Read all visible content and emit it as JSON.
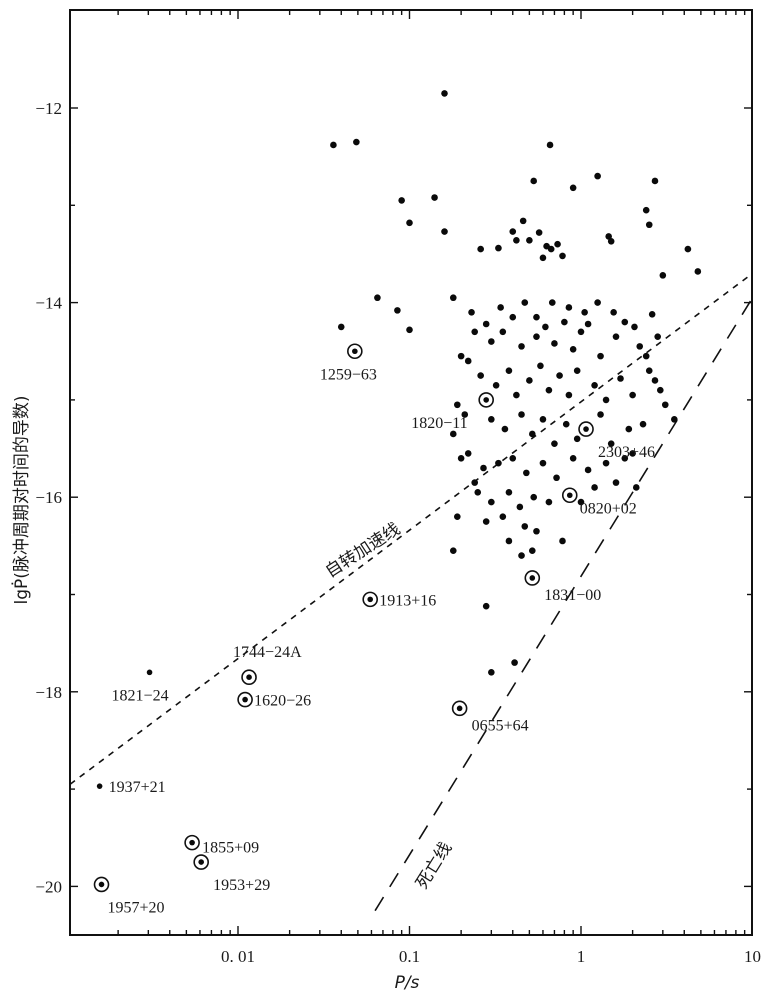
{
  "chart_data": {
    "type": "scatter",
    "title": "",
    "xlabel": "P/s",
    "ylabel": "lgṖ(脉冲周期对时间的导数)",
    "x_scale": "log",
    "xlim": [
      0.00105,
      10
    ],
    "ylim": [
      -20.5,
      -11
    ],
    "x_ticks": [
      {
        "value": 0.01,
        "label": "0. 01"
      },
      {
        "value": 0.1,
        "label": "0.1"
      },
      {
        "value": 1,
        "label": "1"
      },
      {
        "value": 10,
        "label": "10"
      }
    ],
    "y_ticks": [
      {
        "value": -12,
        "label": "−12"
      },
      {
        "value": -14,
        "label": "−14"
      },
      {
        "value": -16,
        "label": "−16"
      },
      {
        "value": -18,
        "label": "−18"
      },
      {
        "value": -20,
        "label": "−20"
      }
    ],
    "grid": false,
    "lines": [
      {
        "name": "自转加速线",
        "style": "short-dash",
        "points": [
          [
            0.00105,
            -18.95
          ],
          [
            10,
            -13.7
          ]
        ]
      },
      {
        "name": "死亡线",
        "style": "long-dash",
        "points": [
          [
            0.063,
            -20.25
          ],
          [
            10,
            -13.95
          ]
        ]
      }
    ],
    "labeled_pulsars": [
      {
        "name": "1259−63",
        "x": 0.048,
        "y": -14.5,
        "marker": "circled-dot",
        "label_text": "1259−63"
      },
      {
        "name": "1820−11",
        "x": 0.28,
        "y": -15.0,
        "marker": "circled-dot",
        "label_text": "1820−11"
      },
      {
        "name": "2303+46",
        "x": 1.07,
        "y": -15.3,
        "marker": "circled-dot",
        "label_text": "2303+46"
      },
      {
        "name": "0820+02",
        "x": 0.86,
        "y": -15.98,
        "marker": "circled-dot",
        "label_text": "0820+02"
      },
      {
        "name": "1831−00",
        "x": 0.52,
        "y": -16.83,
        "marker": "circled-dot",
        "label_text": "1831−00"
      },
      {
        "name": "1913+16",
        "x": 0.059,
        "y": -17.05,
        "marker": "circled-dot",
        "label_text": "1913+16"
      },
      {
        "name": "1744−24A",
        "x": 0.0116,
        "y": -17.85,
        "marker": "circled-dot",
        "label_text": "1744−24A"
      },
      {
        "name": "1620−26",
        "x": 0.011,
        "y": -18.08,
        "marker": "circled-dot",
        "label_text": "1620−26"
      },
      {
        "name": "1821−24",
        "x": 0.00305,
        "y": -17.8,
        "marker": "dot",
        "label_text": "1821−24"
      },
      {
        "name": "0655+64",
        "x": 0.196,
        "y": -18.17,
        "marker": "circled-dot",
        "label_text": "0655+64"
      },
      {
        "name": "1937+21",
        "x": 0.00156,
        "y": -18.97,
        "marker": "dot",
        "label_text": "1937+21"
      },
      {
        "name": "1855+09",
        "x": 0.0054,
        "y": -19.55,
        "marker": "circled-dot",
        "label_text": "1855+09"
      },
      {
        "name": "1953+29",
        "x": 0.0061,
        "y": -19.75,
        "marker": "circled-dot",
        "label_text": "1953+29"
      },
      {
        "name": "1957+20",
        "x": 0.0016,
        "y": -19.98,
        "marker": "circled-dot",
        "label_text": "1957+20"
      }
    ],
    "series": [
      {
        "name": "pulsars",
        "marker": "dot",
        "points": [
          [
            0.036,
            -12.38
          ],
          [
            0.049,
            -12.35
          ],
          [
            0.16,
            -11.85
          ],
          [
            0.66,
            -12.38
          ],
          [
            0.53,
            -12.75
          ],
          [
            1.25,
            -12.7
          ],
          [
            2.7,
            -12.75
          ],
          [
            0.9,
            -12.82
          ],
          [
            0.09,
            -12.95
          ],
          [
            0.14,
            -12.92
          ],
          [
            0.1,
            -13.18
          ],
          [
            0.16,
            -13.27
          ],
          [
            0.46,
            -13.16
          ],
          [
            0.57,
            -13.28
          ],
          [
            0.73,
            -13.4
          ],
          [
            2.4,
            -13.05
          ],
          [
            2.5,
            -13.2
          ],
          [
            4.2,
            -13.45
          ],
          [
            4.8,
            -13.68
          ],
          [
            0.26,
            -13.45
          ],
          [
            0.33,
            -13.44
          ],
          [
            0.4,
            -13.27
          ],
          [
            0.42,
            -13.36
          ],
          [
            0.5,
            -13.36
          ],
          [
            0.6,
            -13.54
          ],
          [
            0.63,
            -13.42
          ],
          [
            0.67,
            -13.45
          ],
          [
            0.78,
            -13.52
          ],
          [
            1.45,
            -13.32
          ],
          [
            1.5,
            -13.37
          ],
          [
            3.0,
            -13.72
          ],
          [
            0.18,
            -13.95
          ],
          [
            0.065,
            -13.95
          ],
          [
            0.085,
            -14.08
          ],
          [
            0.1,
            -14.28
          ],
          [
            0.04,
            -14.25
          ],
          [
            0.23,
            -14.1
          ],
          [
            0.28,
            -14.22
          ],
          [
            0.3,
            -14.4
          ],
          [
            0.35,
            -14.3
          ],
          [
            0.4,
            -14.15
          ],
          [
            0.45,
            -14.45
          ],
          [
            0.55,
            -14.35
          ],
          [
            0.62,
            -14.25
          ],
          [
            0.7,
            -14.42
          ],
          [
            0.8,
            -14.2
          ],
          [
            0.9,
            -14.48
          ],
          [
            1.0,
            -14.3
          ],
          [
            1.1,
            -14.22
          ],
          [
            1.3,
            -14.55
          ],
          [
            1.6,
            -14.35
          ],
          [
            1.8,
            -14.2
          ],
          [
            2.2,
            -14.45
          ],
          [
            2.6,
            -14.12
          ],
          [
            2.8,
            -14.35
          ],
          [
            0.22,
            -14.6
          ],
          [
            0.26,
            -14.75
          ],
          [
            0.32,
            -14.85
          ],
          [
            0.38,
            -14.7
          ],
          [
            0.42,
            -14.95
          ],
          [
            0.5,
            -14.8
          ],
          [
            0.58,
            -14.65
          ],
          [
            0.65,
            -14.9
          ],
          [
            0.75,
            -14.75
          ],
          [
            0.85,
            -14.95
          ],
          [
            0.95,
            -14.7
          ],
          [
            1.2,
            -14.85
          ],
          [
            1.4,
            -15.0
          ],
          [
            1.7,
            -14.78
          ],
          [
            2.0,
            -14.95
          ],
          [
            2.5,
            -14.7
          ],
          [
            2.9,
            -14.9
          ],
          [
            0.21,
            -15.15
          ],
          [
            0.3,
            -15.2
          ],
          [
            0.36,
            -15.3
          ],
          [
            0.45,
            -15.15
          ],
          [
            0.52,
            -15.35
          ],
          [
            0.6,
            -15.2
          ],
          [
            0.7,
            -15.45
          ],
          [
            0.82,
            -15.25
          ],
          [
            0.95,
            -15.4
          ],
          [
            1.3,
            -15.15
          ],
          [
            1.5,
            -15.45
          ],
          [
            1.9,
            -15.3
          ],
          [
            2.3,
            -15.25
          ],
          [
            3.5,
            -15.2
          ],
          [
            0.22,
            -15.55
          ],
          [
            0.27,
            -15.7
          ],
          [
            0.33,
            -15.65
          ],
          [
            0.4,
            -15.6
          ],
          [
            0.48,
            -15.75
          ],
          [
            0.6,
            -15.65
          ],
          [
            0.72,
            -15.8
          ],
          [
            0.9,
            -15.6
          ],
          [
            1.1,
            -15.72
          ],
          [
            1.4,
            -15.65
          ],
          [
            1.8,
            -15.6
          ],
          [
            0.25,
            -15.95
          ],
          [
            0.3,
            -16.05
          ],
          [
            0.38,
            -15.95
          ],
          [
            0.44,
            -16.1
          ],
          [
            0.53,
            -16.0
          ],
          [
            0.65,
            -16.05
          ],
          [
            1.0,
            -16.05
          ],
          [
            0.28,
            -16.25
          ],
          [
            0.35,
            -16.2
          ],
          [
            0.47,
            -16.3
          ],
          [
            0.55,
            -16.35
          ],
          [
            0.78,
            -16.45
          ],
          [
            0.38,
            -16.45
          ],
          [
            0.45,
            -16.6
          ],
          [
            0.52,
            -16.55
          ],
          [
            0.18,
            -16.55
          ],
          [
            0.19,
            -16.2
          ],
          [
            0.28,
            -17.12
          ],
          [
            0.3,
            -17.8
          ],
          [
            0.41,
            -17.7
          ],
          [
            0.24,
            -15.85
          ],
          [
            0.2,
            -15.6
          ],
          [
            0.18,
            -15.35
          ],
          [
            0.19,
            -15.05
          ],
          [
            0.2,
            -14.55
          ],
          [
            0.24,
            -14.3
          ],
          [
            0.34,
            -14.05
          ],
          [
            0.47,
            -14.0
          ],
          [
            0.55,
            -14.15
          ],
          [
            0.68,
            -14.0
          ],
          [
            0.85,
            -14.05
          ],
          [
            1.05,
            -14.1
          ],
          [
            1.25,
            -14.0
          ],
          [
            1.55,
            -14.1
          ],
          [
            2.05,
            -14.25
          ],
          [
            2.4,
            -14.55
          ],
          [
            2.7,
            -14.8
          ],
          [
            3.1,
            -15.05
          ],
          [
            2.0,
            -15.55
          ],
          [
            2.1,
            -15.9
          ],
          [
            1.2,
            -15.9
          ],
          [
            1.6,
            -15.85
          ]
        ]
      }
    ]
  },
  "annotations": {
    "spin_up_line_label": "自转加速线",
    "death_line_label": "死亡线"
  }
}
